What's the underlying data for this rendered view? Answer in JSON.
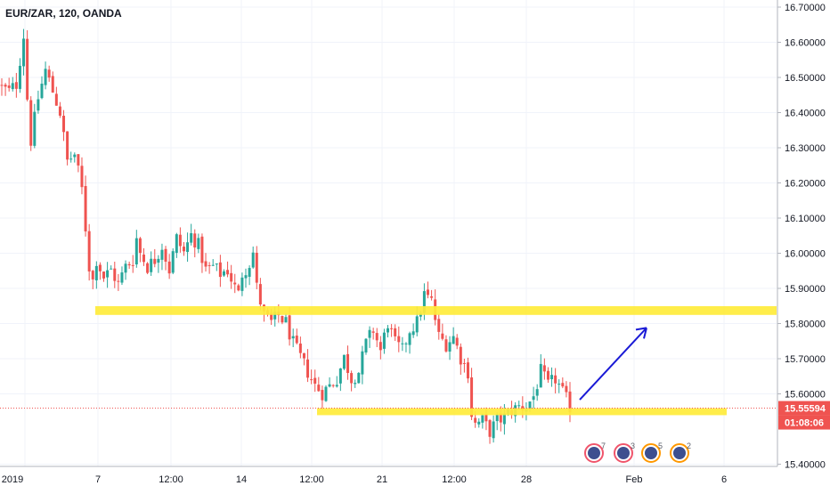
{
  "header": {
    "symbol_label": "EUR/ZAR, 120, OANDA"
  },
  "price_axis": {
    "ticks": [
      "16.70000",
      "16.60000",
      "16.50000",
      "16.40000",
      "16.30000",
      "16.20000",
      "16.10000",
      "16.00000",
      "15.90000",
      "15.80000",
      "15.70000",
      "15.60000",
      "15.40000"
    ],
    "last_price_label": "15.55594",
    "countdown_label": "01:08:06",
    "last_price_color": "#ef5350"
  },
  "time_axis": {
    "ticks": [
      "2019",
      "7",
      "12:00",
      "14",
      "12:00",
      "21",
      "12:00",
      "28",
      "Feb",
      "6"
    ]
  },
  "event_badges": [
    {
      "count": "7",
      "type": "red"
    },
    {
      "count": "3",
      "type": "red"
    },
    {
      "count": "5",
      "type": "orange"
    },
    {
      "count": "2",
      "type": "orange"
    }
  ],
  "colors": {
    "up": "#26a69a",
    "down": "#ef5350",
    "zone": "#ffeb3b",
    "arrow": "#1a1ad6",
    "grid": "#f0f3fa",
    "badge_red": "#f0556b",
    "badge_orange": "#ff9800"
  },
  "chart_data": {
    "type": "candlestick",
    "symbol": "EUR/ZAR",
    "interval": "120",
    "source": "OANDA",
    "y_range": [
      15.37,
      16.72
    ],
    "x_range_index": [
      0,
      142
    ],
    "support_zones": [
      {
        "price_low": 15.822,
        "price_high": 15.847,
        "x_start_index": 26,
        "x_end_index": 142
      },
      {
        "price_low": 15.536,
        "price_high": 15.556,
        "x_start_index": 88,
        "x_end_index": 132
      }
    ],
    "projection_arrow": {
      "from_index": 105,
      "from_price": 15.58,
      "to_index": 118,
      "to_price": 15.785
    },
    "close_path": [
      [
        0,
        16.47
      ],
      [
        2,
        16.46
      ],
      [
        4,
        16.48
      ],
      [
        6,
        16.62
      ],
      [
        7,
        16.44
      ],
      [
        8,
        16.32
      ],
      [
        10,
        16.44
      ],
      [
        12,
        16.52
      ],
      [
        14,
        16.46
      ],
      [
        16,
        16.4
      ],
      [
        18,
        16.26
      ],
      [
        20,
        16.28
      ],
      [
        22,
        16.18
      ],
      [
        24,
        15.96
      ],
      [
        25,
        15.92
      ],
      [
        26,
        15.98
      ],
      [
        28,
        15.93
      ],
      [
        30,
        15.95
      ],
      [
        32,
        15.91
      ],
      [
        34,
        15.96
      ],
      [
        36,
        15.98
      ],
      [
        37,
        16.04
      ],
      [
        38,
        16.0
      ],
      [
        40,
        15.96
      ],
      [
        42,
        15.98
      ],
      [
        44,
        16.02
      ],
      [
        46,
        15.95
      ],
      [
        48,
        16.04
      ],
      [
        50,
        16.0
      ],
      [
        52,
        16.05
      ],
      [
        54,
        16.02
      ],
      [
        56,
        15.95
      ],
      [
        58,
        15.96
      ],
      [
        60,
        15.94
      ],
      [
        62,
        15.95
      ],
      [
        64,
        15.9
      ],
      [
        65,
        15.88
      ],
      [
        66,
        15.94
      ],
      [
        68,
        15.97
      ],
      [
        69,
        16.0
      ],
      [
        70,
        15.9
      ],
      [
        72,
        15.82
      ],
      [
        74,
        15.8
      ],
      [
        76,
        15.82
      ],
      [
        78,
        15.8
      ],
      [
        80,
        15.74
      ],
      [
        82,
        15.7
      ],
      [
        84,
        15.66
      ],
      [
        86,
        15.62
      ],
      [
        88,
        15.6
      ],
      [
        90,
        15.62
      ],
      [
        92,
        15.64
      ],
      [
        94,
        15.7
      ],
      [
        96,
        15.64
      ],
      [
        98,
        15.66
      ],
      [
        100,
        15.74
      ],
      [
        102,
        15.78
      ],
      [
        104,
        15.72
      ],
      [
        106,
        15.8
      ],
      [
        108,
        15.74
      ],
      [
        110,
        15.72
      ],
      [
        112,
        15.78
      ],
      [
        114,
        15.8
      ],
      [
        116,
        15.88
      ],
      [
        118,
        15.86
      ],
      [
        120,
        15.76
      ],
      [
        122,
        15.74
      ],
      [
        124,
        15.76
      ],
      [
        126,
        15.7
      ],
      [
        128,
        15.66
      ],
      [
        129,
        15.54
      ],
      [
        130,
        15.51
      ],
      [
        132,
        15.52
      ],
      [
        134,
        15.49
      ],
      [
        136,
        15.52
      ],
      [
        138,
        15.53
      ],
      [
        140,
        15.55
      ],
      [
        142,
        15.56
      ],
      [
        144,
        15.56
      ],
      [
        146,
        15.59
      ],
      [
        148,
        15.66
      ],
      [
        150,
        15.62
      ],
      [
        152,
        15.64
      ],
      [
        154,
        15.6
      ],
      [
        156,
        15.56
      ]
    ]
  }
}
